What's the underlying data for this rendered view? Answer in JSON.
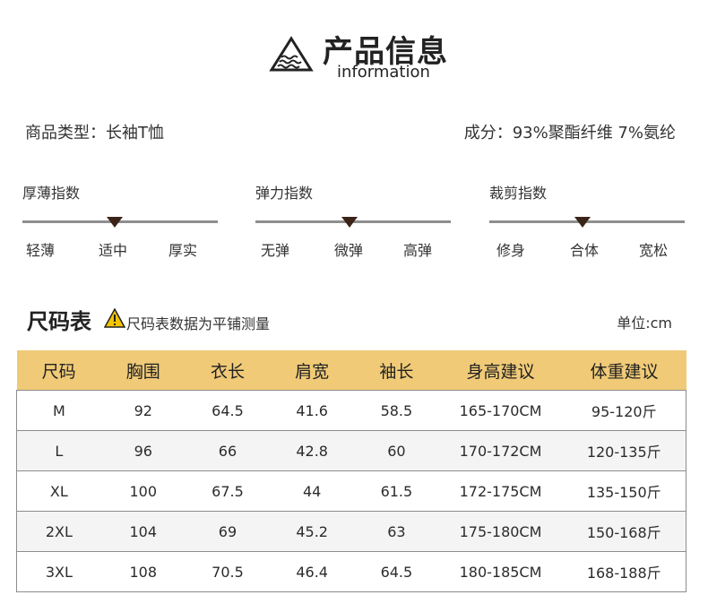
{
  "header": {
    "title": "产品信息",
    "subtitle": "information",
    "icon": "mountain-water-triangle-icon"
  },
  "product": {
    "type_line": "商品类型：长袖T恤",
    "composition_line": "成分：93%聚酯纤维  7%氨纶"
  },
  "indicators": [
    {
      "title": "厚薄指数",
      "labels": [
        "轻薄",
        "适中",
        "厚实"
      ],
      "selected_index": 1
    },
    {
      "title": "弹力指数",
      "labels": [
        "无弹",
        "微弹",
        "高弹"
      ],
      "selected_index": 1
    },
    {
      "title": "裁剪指数",
      "labels": [
        "修身",
        "合体",
        "宽松"
      ],
      "selected_index": 1
    }
  ],
  "size_chart": {
    "title": "尺码表",
    "note": "尺码表数据为平铺测量",
    "unit": "单位:cm",
    "warning_icon": "warning-triangle-icon",
    "accent_color": "#f0ca77",
    "columns": [
      "尺码",
      "胸围",
      "衣长",
      "肩宽",
      "袖长",
      "身高建议",
      "体重建议"
    ],
    "rows": [
      [
        "M",
        "92",
        "64.5",
        "41.6",
        "58.5",
        "165-170CM",
        "95-120斤"
      ],
      [
        "L",
        "96",
        "66",
        "42.8",
        "60",
        "170-172CM",
        "120-135斤"
      ],
      [
        "XL",
        "100",
        "67.5",
        "44",
        "61.5",
        "172-175CM",
        "135-150斤"
      ],
      [
        "2XL",
        "104",
        "69",
        "45.2",
        "63",
        "175-180CM",
        "150-168斤"
      ],
      [
        "3XL",
        "108",
        "70.5",
        "46.4",
        "64.5",
        "180-185CM",
        "168-188斤"
      ]
    ]
  }
}
